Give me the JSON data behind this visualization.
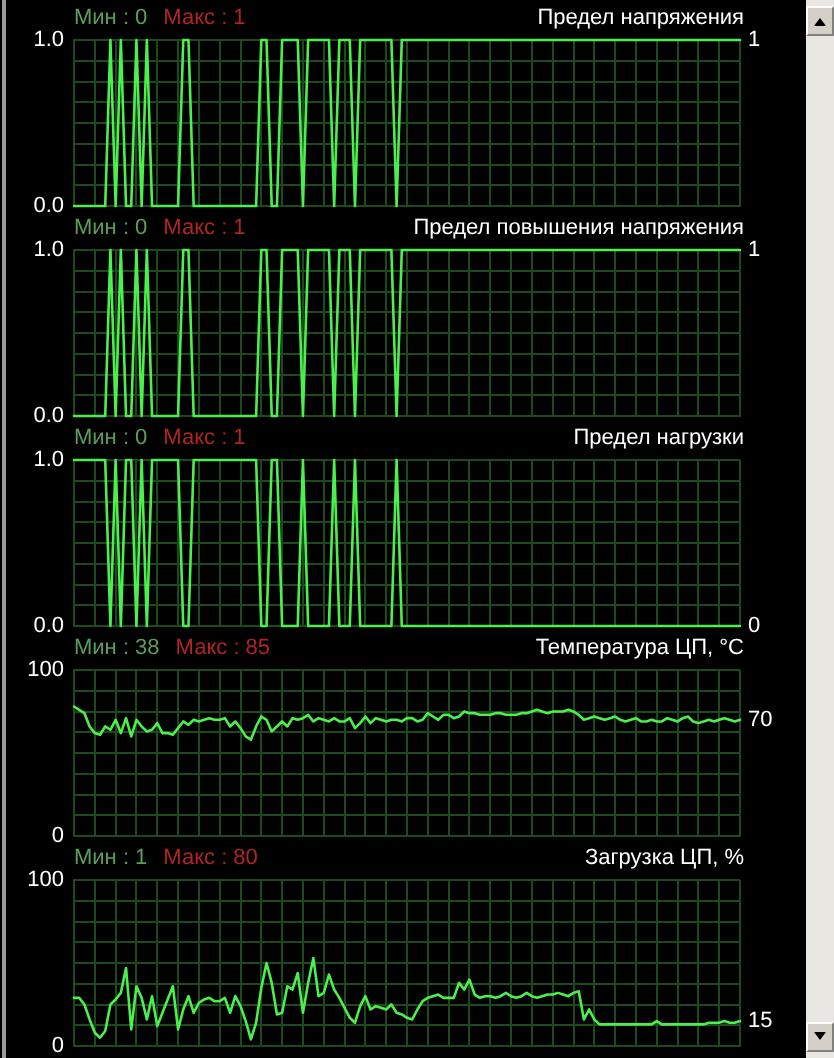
{
  "chart_data": [
    {
      "type": "line",
      "title": "Предел напряжения",
      "annotations": [
        "Мин : 0",
        "Макс : 1"
      ],
      "color": "#4cf04c",
      "categories": [
        null,
        null,
        null,
        null,
        null,
        null,
        null,
        null,
        null,
        null,
        null,
        null,
        null,
        null,
        null,
        null,
        null,
        null,
        null,
        null,
        null,
        null,
        null,
        null,
        null,
        null,
        null,
        null,
        null,
        null,
        null,
        null,
        null,
        null,
        null,
        null,
        null,
        null,
        null,
        null,
        null,
        null,
        null,
        null,
        null,
        null,
        null,
        null,
        null,
        null,
        null,
        null,
        null,
        null,
        null,
        null,
        null,
        null,
        null,
        null,
        null,
        null,
        null,
        null,
        null,
        null,
        null,
        null,
        null,
        null,
        null,
        null,
        null,
        null,
        null,
        null,
        null,
        null,
        null,
        null,
        null,
        null,
        null,
        null,
        null,
        null,
        null,
        null,
        null,
        null,
        null,
        null,
        null,
        null,
        null,
        null,
        null,
        null,
        null,
        null,
        null,
        null,
        null,
        null,
        null,
        null,
        null,
        null,
        null,
        null,
        null,
        null,
        null,
        null,
        null,
        null,
        null,
        null,
        null,
        null,
        null,
        null,
        null,
        null,
        null,
        null,
        null,
        null,
        null
      ],
      "values": [
        0,
        0,
        0,
        0,
        0,
        0,
        0,
        1,
        0,
        1,
        0,
        0,
        1,
        0,
        1,
        0,
        0,
        0,
        0,
        0,
        0,
        1,
        1,
        0,
        0,
        0,
        0,
        0,
        0,
        0,
        0,
        0,
        0,
        0,
        0,
        0,
        1,
        1,
        0,
        0,
        1,
        1,
        1,
        1,
        0,
        1,
        1,
        1,
        1,
        1,
        0,
        1,
        1,
        1,
        0,
        1,
        1,
        1,
        1,
        1,
        1,
        1,
        0,
        1,
        1,
        1,
        1,
        1,
        1,
        1,
        1,
        1,
        1,
        1,
        1,
        1,
        1,
        1,
        1,
        1,
        1,
        1,
        1,
        1,
        1,
        1,
        1,
        1,
        1,
        1,
        1,
        1,
        1,
        1,
        1,
        1,
        1,
        1,
        1,
        1,
        1,
        1,
        1,
        1,
        1,
        1,
        1,
        1,
        1,
        1,
        1,
        1,
        1,
        1,
        1,
        1,
        1,
        1,
        1,
        1,
        1,
        1,
        1,
        1,
        1,
        1,
        1,
        1,
        1
      ],
      "value_labels": [
        null,
        null,
        null,
        null,
        null,
        null,
        null,
        null,
        null,
        null,
        null,
        null,
        null,
        null,
        null,
        null,
        null,
        null,
        null,
        null,
        null,
        null,
        null,
        null,
        null,
        null,
        null,
        null,
        null,
        null,
        null,
        null,
        null,
        null,
        null,
        null,
        null,
        null,
        null,
        null,
        null,
        null,
        null,
        null,
        null,
        null,
        null,
        null,
        null,
        null,
        null,
        null,
        null,
        null,
        null,
        null,
        null,
        null,
        null,
        null,
        null,
        null,
        null,
        null,
        null,
        null,
        null,
        null,
        null,
        null,
        null,
        null,
        null,
        null,
        null,
        null,
        null,
        null,
        null,
        null,
        null,
        null,
        null,
        null,
        null,
        null,
        null,
        null,
        null,
        null,
        null,
        null,
        null,
        null,
        null,
        null,
        null,
        null,
        null,
        null,
        null,
        null,
        null,
        null,
        null,
        null,
        null,
        null,
        null,
        null,
        null,
        null,
        null,
        null,
        null,
        null,
        null,
        null,
        null,
        null,
        null,
        null,
        null,
        null,
        null,
        null,
        null,
        null,
        "1"
      ],
      "ylim": [
        0,
        1
      ],
      "yticks": [
        {
          "value": 0,
          "label": "0.0"
        },
        {
          "value": 0.125,
          "label": null
        },
        {
          "value": 0.25,
          "label": null
        },
        {
          "value": 0.375,
          "label": null
        },
        {
          "value": 0.5,
          "label": null
        },
        {
          "value": 0.625,
          "label": null
        },
        {
          "value": 0.75,
          "label": null
        },
        {
          "value": 0.875,
          "label": null
        },
        {
          "value": 1,
          "label": "1.0"
        }
      ],
      "grid": true,
      "tick_labels": "y"
    },
    {
      "type": "line",
      "title": "Предел повышения напряжения",
      "annotations": [
        "Мин : 0",
        "Макс : 1"
      ],
      "color": "#4cf04c",
      "categories": [
        null,
        null,
        null,
        null,
        null,
        null,
        null,
        null,
        null,
        null,
        null,
        null,
        null,
        null,
        null,
        null,
        null,
        null,
        null,
        null,
        null,
        null,
        null,
        null,
        null,
        null,
        null,
        null,
        null,
        null,
        null,
        null,
        null,
        null,
        null,
        null,
        null,
        null,
        null,
        null,
        null,
        null,
        null,
        null,
        null,
        null,
        null,
        null,
        null,
        null,
        null,
        null,
        null,
        null,
        null,
        null,
        null,
        null,
        null,
        null,
        null,
        null,
        null,
        null,
        null,
        null,
        null,
        null,
        null,
        null,
        null,
        null,
        null,
        null,
        null,
        null,
        null,
        null,
        null,
        null,
        null,
        null,
        null,
        null,
        null,
        null,
        null,
        null,
        null,
        null,
        null,
        null,
        null,
        null,
        null,
        null,
        null,
        null,
        null,
        null,
        null,
        null,
        null,
        null,
        null,
        null,
        null,
        null,
        null,
        null,
        null,
        null,
        null,
        null,
        null,
        null,
        null,
        null,
        null,
        null,
        null,
        null,
        null,
        null,
        null,
        null,
        null,
        null,
        null
      ],
      "values": [
        0,
        0,
        0,
        0,
        0,
        0,
        0,
        1,
        0,
        1,
        0,
        0,
        1,
        0,
        1,
        0,
        0,
        0,
        0,
        0,
        0,
        1,
        1,
        0,
        0,
        0,
        0,
        0,
        0,
        0,
        0,
        0,
        0,
        0,
        0,
        0,
        1,
        1,
        0,
        0,
        1,
        1,
        1,
        1,
        0,
        1,
        1,
        1,
        1,
        1,
        0,
        1,
        1,
        1,
        0,
        1,
        1,
        1,
        1,
        1,
        1,
        1,
        0,
        1,
        1,
        1,
        1,
        1,
        1,
        1,
        1,
        1,
        1,
        1,
        1,
        1,
        1,
        1,
        1,
        1,
        1,
        1,
        1,
        1,
        1,
        1,
        1,
        1,
        1,
        1,
        1,
        1,
        1,
        1,
        1,
        1,
        1,
        1,
        1,
        1,
        1,
        1,
        1,
        1,
        1,
        1,
        1,
        1,
        1,
        1,
        1,
        1,
        1,
        1,
        1,
        1,
        1,
        1,
        1,
        1,
        1,
        1,
        1,
        1,
        1,
        1,
        1,
        1,
        1
      ],
      "value_labels": [
        null,
        null,
        null,
        null,
        null,
        null,
        null,
        null,
        null,
        null,
        null,
        null,
        null,
        null,
        null,
        null,
        null,
        null,
        null,
        null,
        null,
        null,
        null,
        null,
        null,
        null,
        null,
        null,
        null,
        null,
        null,
        null,
        null,
        null,
        null,
        null,
        null,
        null,
        null,
        null,
        null,
        null,
        null,
        null,
        null,
        null,
        null,
        null,
        null,
        null,
        null,
        null,
        null,
        null,
        null,
        null,
        null,
        null,
        null,
        null,
        null,
        null,
        null,
        null,
        null,
        null,
        null,
        null,
        null,
        null,
        null,
        null,
        null,
        null,
        null,
        null,
        null,
        null,
        null,
        null,
        null,
        null,
        null,
        null,
        null,
        null,
        null,
        null,
        null,
        null,
        null,
        null,
        null,
        null,
        null,
        null,
        null,
        null,
        null,
        null,
        null,
        null,
        null,
        null,
        null,
        null,
        null,
        null,
        null,
        null,
        null,
        null,
        null,
        null,
        null,
        null,
        null,
        null,
        null,
        null,
        null,
        null,
        null,
        null,
        null,
        null,
        null,
        null,
        "1"
      ],
      "ylim": [
        0,
        1
      ],
      "yticks": [
        {
          "value": 0,
          "label": "0.0"
        },
        {
          "value": 0.125,
          "label": null
        },
        {
          "value": 0.25,
          "label": null
        },
        {
          "value": 0.375,
          "label": null
        },
        {
          "value": 0.5,
          "label": null
        },
        {
          "value": 0.625,
          "label": null
        },
        {
          "value": 0.75,
          "label": null
        },
        {
          "value": 0.875,
          "label": null
        },
        {
          "value": 1,
          "label": "1.0"
        }
      ],
      "grid": true,
      "tick_labels": "y"
    },
    {
      "type": "line",
      "title": "Предел нагрузки",
      "annotations": [
        "Мин : 0",
        "Макс : 1"
      ],
      "color": "#4cf04c",
      "categories": [
        null,
        null,
        null,
        null,
        null,
        null,
        null,
        null,
        null,
        null,
        null,
        null,
        null,
        null,
        null,
        null,
        null,
        null,
        null,
        null,
        null,
        null,
        null,
        null,
        null,
        null,
        null,
        null,
        null,
        null,
        null,
        null,
        null,
        null,
        null,
        null,
        null,
        null,
        null,
        null,
        null,
        null,
        null,
        null,
        null,
        null,
        null,
        null,
        null,
        null,
        null,
        null,
        null,
        null,
        null,
        null,
        null,
        null,
        null,
        null,
        null,
        null,
        null,
        null,
        null,
        null,
        null,
        null,
        null,
        null,
        null,
        null,
        null,
        null,
        null,
        null,
        null,
        null,
        null,
        null,
        null,
        null,
        null,
        null,
        null,
        null,
        null,
        null,
        null,
        null,
        null,
        null,
        null,
        null,
        null,
        null,
        null,
        null,
        null,
        null,
        null,
        null,
        null,
        null,
        null,
        null,
        null,
        null,
        null,
        null,
        null,
        null,
        null,
        null,
        null,
        null,
        null,
        null,
        null,
        null,
        null,
        null,
        null,
        null,
        null,
        null,
        null,
        null,
        null
      ],
      "values": [
        1,
        1,
        1,
        1,
        1,
        1,
        1,
        0,
        1,
        0,
        1,
        1,
        0,
        1,
        0,
        1,
        1,
        1,
        1,
        1,
        1,
        0,
        0,
        1,
        1,
        1,
        1,
        1,
        1,
        1,
        1,
        1,
        1,
        1,
        1,
        1,
        0,
        0,
        1,
        1,
        0,
        0,
        0,
        0,
        1,
        0,
        0,
        0,
        0,
        0,
        1,
        0,
        0,
        0,
        1,
        0,
        0,
        0,
        0,
        0,
        0,
        0,
        1,
        0,
        0,
        0,
        0,
        0,
        0,
        0,
        0,
        0,
        0,
        0,
        0,
        0,
        0,
        0,
        0,
        0,
        0,
        0,
        0,
        0,
        0,
        0,
        0,
        0,
        0,
        0,
        0,
        0,
        0,
        0,
        0,
        0,
        0,
        0,
        0,
        0,
        0,
        0,
        0,
        0,
        0,
        0,
        0,
        0,
        0,
        0,
        0,
        0,
        0,
        0,
        0,
        0,
        0,
        0,
        0,
        0,
        0,
        0,
        0,
        0,
        0,
        0,
        0,
        0,
        0
      ],
      "value_labels": [
        null,
        null,
        null,
        null,
        null,
        null,
        null,
        null,
        null,
        null,
        null,
        null,
        null,
        null,
        null,
        null,
        null,
        null,
        null,
        null,
        null,
        null,
        null,
        null,
        null,
        null,
        null,
        null,
        null,
        null,
        null,
        null,
        null,
        null,
        null,
        null,
        null,
        null,
        null,
        null,
        null,
        null,
        null,
        null,
        null,
        null,
        null,
        null,
        null,
        null,
        null,
        null,
        null,
        null,
        null,
        null,
        null,
        null,
        null,
        null,
        null,
        null,
        null,
        null,
        null,
        null,
        null,
        null,
        null,
        null,
        null,
        null,
        null,
        null,
        null,
        null,
        null,
        null,
        null,
        null,
        null,
        null,
        null,
        null,
        null,
        null,
        null,
        null,
        null,
        null,
        null,
        null,
        null,
        null,
        null,
        null,
        null,
        null,
        null,
        null,
        null,
        null,
        null,
        null,
        null,
        null,
        null,
        null,
        null,
        null,
        null,
        null,
        null,
        null,
        null,
        null,
        null,
        null,
        null,
        null,
        null,
        null,
        null,
        null,
        null,
        null,
        null,
        null,
        "0"
      ],
      "ylim": [
        0,
        1
      ],
      "yticks": [
        {
          "value": 0,
          "label": "0.0"
        },
        {
          "value": 0.125,
          "label": null
        },
        {
          "value": 0.25,
          "label": null
        },
        {
          "value": 0.375,
          "label": null
        },
        {
          "value": 0.5,
          "label": null
        },
        {
          "value": 0.625,
          "label": null
        },
        {
          "value": 0.75,
          "label": null
        },
        {
          "value": 0.875,
          "label": null
        },
        {
          "value": 1,
          "label": "1.0"
        }
      ],
      "grid": true,
      "tick_labels": "y"
    },
    {
      "type": "line",
      "title": "Температура ЦП, °C",
      "annotations": [
        "Мин : 38",
        "Макс : 85"
      ],
      "color": "#4cf04c",
      "categories": [
        null,
        null,
        null,
        null,
        null,
        null,
        null,
        null,
        null,
        null,
        null,
        null,
        null,
        null,
        null,
        null,
        null,
        null,
        null,
        null,
        null,
        null,
        null,
        null,
        null,
        null,
        null,
        null,
        null,
        null,
        null,
        null,
        null,
        null,
        null,
        null,
        null,
        null,
        null,
        null,
        null,
        null,
        null,
        null,
        null,
        null,
        null,
        null,
        null,
        null,
        null,
        null,
        null,
        null,
        null,
        null,
        null,
        null,
        null,
        null,
        null,
        null,
        null,
        null,
        null,
        null,
        null,
        null,
        null,
        null,
        null,
        null,
        null,
        null,
        null,
        null,
        null,
        null,
        null,
        null,
        null,
        null,
        null,
        null,
        null,
        null,
        null,
        null,
        null,
        null,
        null,
        null,
        null,
        null,
        null,
        null,
        null,
        null,
        null,
        null,
        null,
        null,
        null,
        null,
        null,
        null,
        null,
        null,
        null,
        null,
        null,
        null,
        null,
        null,
        null,
        null,
        null,
        null,
        null,
        null,
        null,
        null,
        null,
        null,
        null,
        null,
        null,
        null,
        null
      ],
      "values": [
        78,
        76,
        74,
        66,
        62,
        61,
        66,
        64,
        70,
        62,
        71,
        60,
        70,
        66,
        63,
        64,
        68,
        62,
        62,
        61,
        65,
        69,
        67,
        70,
        69,
        70,
        71,
        70,
        70,
        71,
        66,
        69,
        65,
        60,
        58,
        66,
        72,
        70,
        63,
        66,
        69,
        66,
        71,
        70,
        71,
        73,
        69,
        71,
        70,
        69,
        71,
        69,
        69,
        71,
        65,
        68,
        72,
        68,
        71,
        70,
        69,
        70,
        70,
        69,
        71,
        71,
        69,
        70,
        74,
        72,
        70,
        73,
        73,
        71,
        72,
        75,
        74,
        74,
        73,
        73,
        73,
        74,
        74,
        73,
        73,
        73,
        74,
        74,
        75,
        76,
        75,
        74,
        75,
        75,
        75,
        76,
        75,
        73,
        70,
        71,
        72,
        71,
        70,
        71,
        72,
        70,
        69,
        70,
        71,
        69,
        69,
        70,
        69,
        69,
        71,
        70,
        69,
        71,
        72,
        69,
        68,
        69,
        70,
        69,
        70,
        71,
        70,
        69,
        70
      ],
      "value_labels": [
        null,
        null,
        null,
        null,
        null,
        null,
        null,
        null,
        null,
        null,
        null,
        null,
        null,
        null,
        null,
        null,
        null,
        null,
        null,
        null,
        null,
        null,
        null,
        null,
        null,
        null,
        null,
        null,
        null,
        null,
        null,
        null,
        null,
        null,
        null,
        null,
        null,
        null,
        null,
        null,
        null,
        null,
        null,
        null,
        null,
        null,
        null,
        null,
        null,
        null,
        null,
        null,
        null,
        null,
        null,
        null,
        null,
        null,
        null,
        null,
        null,
        null,
        null,
        null,
        null,
        null,
        null,
        null,
        null,
        null,
        null,
        null,
        null,
        null,
        null,
        null,
        null,
        null,
        null,
        null,
        null,
        null,
        null,
        null,
        null,
        null,
        null,
        null,
        null,
        null,
        null,
        null,
        null,
        null,
        null,
        null,
        null,
        null,
        null,
        null,
        null,
        null,
        null,
        null,
        null,
        null,
        null,
        null,
        null,
        null,
        null,
        null,
        null,
        null,
        null,
        null,
        null,
        null,
        null,
        null,
        null,
        null,
        null,
        null,
        null,
        null,
        null,
        null,
        "70"
      ],
      "ylim": [
        0,
        100
      ],
      "yticks": [
        {
          "value": 0,
          "label": "0"
        },
        {
          "value": 12.5,
          "label": null
        },
        {
          "value": 25,
          "label": null
        },
        {
          "value": 37.5,
          "label": null
        },
        {
          "value": 50,
          "label": null
        },
        {
          "value": 62.5,
          "label": null
        },
        {
          "value": 75,
          "label": null
        },
        {
          "value": 87.5,
          "label": null
        },
        100
      ],
      "grid": true,
      "tick_labels": "y"
    },
    {
      "type": "line",
      "title": "Загрузка ЦП, %",
      "annotations": [
        "Мин : 1",
        "Макс : 80"
      ],
      "color": "#4cf04c",
      "categories": [
        null,
        null,
        null,
        null,
        null,
        null,
        null,
        null,
        null,
        null,
        null,
        null,
        null,
        null,
        null,
        null,
        null,
        null,
        null,
        null,
        null,
        null,
        null,
        null,
        null,
        null,
        null,
        null,
        null,
        null,
        null,
        null,
        null,
        null,
        null,
        null,
        null,
        null,
        null,
        null,
        null,
        null,
        null,
        null,
        null,
        null,
        null,
        null,
        null,
        null,
        null,
        null,
        null,
        null,
        null,
        null,
        null,
        null,
        null,
        null,
        null,
        null,
        null,
        null,
        null,
        null,
        null,
        null,
        null,
        null,
        null,
        null,
        null,
        null,
        null,
        null,
        null,
        null,
        null,
        null,
        null,
        null,
        null,
        null,
        null,
        null,
        null,
        null,
        null,
        null,
        null,
        null,
        null,
        null,
        null,
        null,
        null,
        null,
        null,
        null,
        null,
        null,
        null,
        null,
        null,
        null,
        null,
        null,
        null,
        null,
        null,
        null,
        null,
        null,
        null,
        null,
        null,
        null,
        null,
        null,
        null,
        null,
        null,
        null,
        null,
        null,
        null,
        null,
        null
      ],
      "values": [
        29,
        29,
        25,
        16,
        8,
        5,
        9,
        25,
        28,
        32,
        47,
        10,
        36,
        29,
        16,
        30,
        12,
        20,
        28,
        36,
        10,
        22,
        30,
        20,
        26,
        28,
        29,
        27,
        27,
        29,
        20,
        30,
        24,
        15,
        4,
        14,
        35,
        50,
        38,
        19,
        20,
        36,
        34,
        44,
        20,
        38,
        53,
        30,
        32,
        43,
        34,
        29,
        23,
        17,
        14,
        24,
        30,
        22,
        24,
        23,
        22,
        25,
        20,
        19,
        17,
        16,
        22,
        27,
        29,
        30,
        31,
        29,
        29,
        29,
        38,
        34,
        40,
        31,
        29,
        30,
        30,
        29,
        30,
        32,
        30,
        29,
        30,
        32,
        30,
        29,
        30,
        31,
        31,
        32,
        31,
        30,
        32,
        33,
        16,
        22,
        16,
        13,
        13,
        13,
        13,
        13,
        13,
        13,
        13,
        13,
        13,
        13,
        15,
        13,
        13,
        13,
        13,
        13,
        13,
        13,
        13,
        13,
        14,
        14,
        14,
        15,
        14,
        14,
        15
      ],
      "value_labels": [
        null,
        null,
        null,
        null,
        null,
        null,
        null,
        null,
        null,
        null,
        null,
        null,
        null,
        null,
        null,
        null,
        null,
        null,
        null,
        null,
        null,
        null,
        null,
        null,
        null,
        null,
        null,
        null,
        null,
        null,
        null,
        null,
        null,
        null,
        null,
        null,
        null,
        null,
        null,
        null,
        null,
        null,
        null,
        null,
        null,
        null,
        null,
        null,
        null,
        null,
        null,
        null,
        null,
        null,
        null,
        null,
        null,
        null,
        null,
        null,
        null,
        null,
        null,
        null,
        null,
        null,
        null,
        null,
        null,
        null,
        null,
        null,
        null,
        null,
        null,
        null,
        null,
        null,
        null,
        null,
        null,
        null,
        null,
        null,
        null,
        null,
        null,
        null,
        null,
        null,
        null,
        null,
        null,
        null,
        null,
        null,
        null,
        null,
        null,
        null,
        null,
        null,
        null,
        null,
        null,
        null,
        null,
        null,
        null,
        null,
        null,
        null,
        null,
        null,
        null,
        null,
        null,
        null,
        null,
        null,
        null,
        null,
        null,
        null,
        null,
        null,
        null,
        null,
        "15"
      ],
      "ylim": [
        0,
        100
      ],
      "yticks": [
        {
          "value": 0,
          "label": "0"
        },
        {
          "value": 12.5,
          "label": null
        },
        {
          "value": 25,
          "label": null
        },
        {
          "value": 37.5,
          "label": null
        },
        {
          "value": 50,
          "label": null
        },
        {
          "value": 62.5,
          "label": null
        },
        {
          "value": 75,
          "label": null
        },
        {
          "value": 87.5,
          "label": null
        },
        100
      ],
      "grid": true,
      "tick_labels": "y"
    }
  ]
}
